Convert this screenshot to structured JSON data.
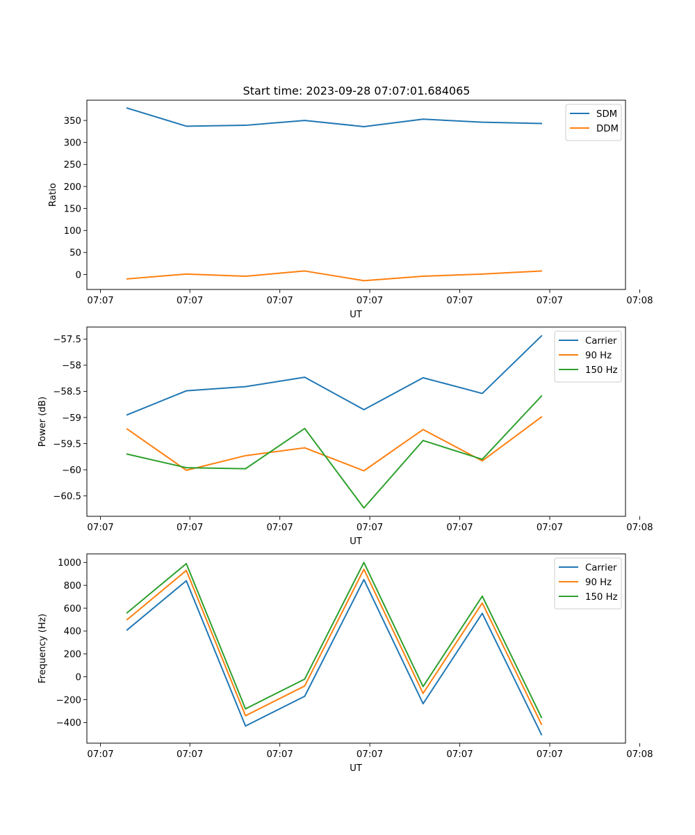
{
  "figure_title": "Start time: 2023-09-28 07:07:01.684065",
  "chart_data": [
    {
      "type": "line",
      "title": "Start time: 2023-09-28 07:07:01.684065",
      "xlabel": "UT",
      "ylabel": "Ratio",
      "x": [
        1,
        2,
        3,
        4,
        5,
        6,
        7,
        8
      ],
      "xlim": [
        0.32,
        9.42
      ],
      "xticks": [
        {
          "value": 0.55,
          "label": "07:07"
        },
        {
          "value": 2.06,
          "label": "07:07"
        },
        {
          "value": 3.58,
          "label": "07:07"
        },
        {
          "value": 5.1,
          "label": "07:07"
        },
        {
          "value": 6.62,
          "label": "07:07"
        },
        {
          "value": 8.14,
          "label": "07:07"
        },
        {
          "value": 9.66,
          "label": "07:08"
        }
      ],
      "ylim": [
        -34,
        396
      ],
      "yticks": [
        0,
        50,
        100,
        150,
        200,
        250,
        300,
        350
      ],
      "legend_position": "top-right",
      "series": [
        {
          "name": "SDM",
          "color": "#1f77b4",
          "values": [
            378,
            337,
            339,
            350,
            336,
            353,
            346,
            343
          ]
        },
        {
          "name": "DDM",
          "color": "#ff7f0e",
          "values": [
            -10,
            1,
            -4,
            8,
            -14,
            -4,
            1,
            8
          ]
        }
      ]
    },
    {
      "type": "line",
      "title": "",
      "xlabel": "UT",
      "ylabel": "Power (dB)",
      "x": [
        1,
        2,
        3,
        4,
        5,
        6,
        7,
        8
      ],
      "xlim": [
        0.32,
        9.42
      ],
      "xticks": [
        {
          "value": 0.55,
          "label": "07:07"
        },
        {
          "value": 2.06,
          "label": "07:07"
        },
        {
          "value": 3.58,
          "label": "07:07"
        },
        {
          "value": 5.1,
          "label": "07:07"
        },
        {
          "value": 6.62,
          "label": "07:07"
        },
        {
          "value": 8.14,
          "label": "07:07"
        },
        {
          "value": 9.66,
          "label": "07:08"
        }
      ],
      "ylim": [
        -60.89,
        -57.27
      ],
      "yticks": [
        -60.5,
        -60.0,
        -59.5,
        -59.0,
        -58.5,
        -58.0,
        -57.5
      ],
      "legend_position": "top-right",
      "series": [
        {
          "name": "Carrier",
          "color": "#1f77b4",
          "values": [
            -58.95,
            -58.49,
            -58.41,
            -58.23,
            -58.85,
            -58.24,
            -58.54,
            -57.44
          ]
        },
        {
          "name": "90 Hz",
          "color": "#ff7f0e",
          "values": [
            -59.22,
            -60.01,
            -59.73,
            -59.58,
            -60.02,
            -59.23,
            -59.83,
            -58.99
          ]
        },
        {
          "name": "150 Hz",
          "color": "#2ca02c",
          "values": [
            -59.7,
            -59.96,
            -59.98,
            -59.21,
            -60.73,
            -59.44,
            -59.8,
            -58.59
          ]
        }
      ]
    },
    {
      "type": "line",
      "title": "",
      "xlabel": "UT",
      "ylabel": "Frequency (Hz)",
      "x": [
        1,
        2,
        3,
        4,
        5,
        6,
        7,
        8
      ],
      "xlim": [
        0.32,
        9.42
      ],
      "xticks": [
        {
          "value": 0.55,
          "label": "07:07"
        },
        {
          "value": 2.06,
          "label": "07:07"
        },
        {
          "value": 3.58,
          "label": "07:07"
        },
        {
          "value": 5.1,
          "label": "07:07"
        },
        {
          "value": 6.62,
          "label": "07:07"
        },
        {
          "value": 8.14,
          "label": "07:07"
        },
        {
          "value": 9.66,
          "label": "07:08"
        }
      ],
      "ylim": [
        -580,
        1075
      ],
      "yticks": [
        -400,
        -200,
        0,
        200,
        400,
        600,
        800,
        1000
      ],
      "legend_position": "top-right",
      "series": [
        {
          "name": "Carrier",
          "color": "#1f77b4",
          "values": [
            410,
            840,
            -430,
            -170,
            850,
            -235,
            555,
            -505
          ]
        },
        {
          "name": "90 Hz",
          "color": "#ff7f0e",
          "values": [
            500,
            930,
            -340,
            -80,
            940,
            -145,
            645,
            -415
          ]
        },
        {
          "name": "150 Hz",
          "color": "#2ca02c",
          "values": [
            560,
            990,
            -280,
            -20,
            1000,
            -85,
            705,
            -355
          ]
        }
      ]
    }
  ]
}
